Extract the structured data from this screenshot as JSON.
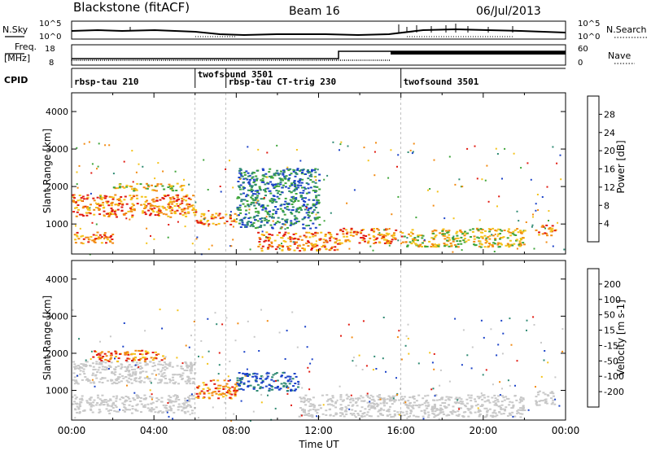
{
  "header": {
    "station": "Blackstone (fitACF)",
    "beam": "Beam 16",
    "date": "06/Jul/2013"
  },
  "top_strip": {
    "left_label_1": "N.Sky",
    "right_label_1": "N.Search",
    "left_ticks_1": [
      "10^5",
      "10^0"
    ],
    "right_ticks_1": [
      "10^5",
      "10^0"
    ],
    "left_label_2": "Freq.",
    "left_label_2b": "[MHz]",
    "left_ticks_2": [
      "18",
      "8"
    ],
    "right_label_2": "Nave",
    "right_ticks_2": [
      "60",
      "0"
    ],
    "cpid_label": "CPID"
  },
  "cpid_segments": [
    {
      "label": "rbsp-tau 210",
      "start_hour": 0.0
    },
    {
      "label": "twofsound 3501",
      "start_hour": 6.0
    },
    {
      "label": "rbsp-tau CT-trig 230",
      "start_hour": 7.5
    },
    {
      "label": "twofsound 3501",
      "start_hour": 16.0
    }
  ],
  "x_axis": {
    "label": "Time UT",
    "range_hours": [
      0,
      24
    ],
    "ticks": [
      "00:00",
      "04:00",
      "08:00",
      "12:00",
      "16:00",
      "20:00",
      "00:00"
    ]
  },
  "colors": {
    "red": "#e11a10",
    "orange": "#f28a11",
    "yellow": "#f4c31a",
    "green": "#3fa53a",
    "teal": "#2f8a73",
    "blue": "#1c43c8",
    "grey": "#c8c8c8"
  },
  "chart_data": [
    {
      "type": "heatmap",
      "name": "power",
      "ylabel": "Slant Range [km]",
      "yticks": [
        "1000",
        "2000",
        "3000",
        "4000"
      ],
      "ylim": [
        200,
        4500
      ],
      "xlim": [
        0,
        24
      ],
      "colorbar": {
        "label": "Power [dB]",
        "ticks": [
          "4",
          "8",
          "12",
          "16",
          "20",
          "24",
          "28"
        ],
        "colors": [
          "#1c43c8",
          "#2f8a73",
          "#3fa53a",
          "#f4c31a",
          "#f28a11",
          "#f26a10",
          "#e11a10"
        ]
      },
      "regions": [
        {
          "t": [
            0.0,
            6.0
          ],
          "r": [
            1200,
            1800
          ],
          "level": "high"
        },
        {
          "t": [
            0.0,
            2.0
          ],
          "r": [
            500,
            800
          ],
          "level": "high"
        },
        {
          "t": [
            2.0,
            5.5
          ],
          "r": [
            1900,
            2100
          ],
          "level": "mid"
        },
        {
          "t": [
            6.0,
            8.0
          ],
          "r": [
            1000,
            1300
          ],
          "level": "high"
        },
        {
          "t": [
            9.0,
            13.0
          ],
          "r": [
            300,
            800
          ],
          "level": "high"
        },
        {
          "t": [
            13.0,
            16.0
          ],
          "r": [
            500,
            900
          ],
          "level": "high"
        },
        {
          "t": [
            16.0,
            22.0
          ],
          "r": [
            400,
            900
          ],
          "level": "mid"
        },
        {
          "t": [
            22.5,
            23.5
          ],
          "r": [
            700,
            1000
          ],
          "level": "high"
        },
        {
          "t": [
            8.0,
            12.0
          ],
          "r": [
            900,
            2500
          ],
          "level": "low"
        }
      ]
    },
    {
      "type": "heatmap",
      "name": "velocity",
      "ylabel": "Slant Range [km]",
      "yticks": [
        "1000",
        "2000",
        "3000",
        "4000"
      ],
      "ylim": [
        200,
        4500
      ],
      "xlim": [
        0,
        24
      ],
      "colorbar": {
        "label": "Velocity [m s-1]",
        "ticks": [
          "200",
          "100",
          "50",
          "15",
          "-15",
          "-50",
          "-100",
          "-200"
        ],
        "colors": [
          "#1c43c8",
          "#2f8a73",
          "#3fa53a",
          "#c8c8c8",
          "#c8c8c8",
          "#f4c31a",
          "#f28a11",
          "#e11a10"
        ]
      },
      "regions": [
        {
          "t": [
            0.0,
            6.0
          ],
          "r": [
            1200,
            1800
          ],
          "level": "grey"
        },
        {
          "t": [
            1.0,
            4.5
          ],
          "r": [
            1800,
            2100
          ],
          "level": "red"
        },
        {
          "t": [
            0.0,
            6.0
          ],
          "r": [
            400,
            900
          ],
          "level": "grey"
        },
        {
          "t": [
            6.0,
            8.0
          ],
          "r": [
            800,
            1300
          ],
          "level": "red"
        },
        {
          "t": [
            8.0,
            11.0
          ],
          "r": [
            1000,
            1500
          ],
          "level": "blue"
        },
        {
          "t": [
            11.0,
            22.0
          ],
          "r": [
            300,
            900
          ],
          "level": "grey"
        },
        {
          "t": [
            22.5,
            23.5
          ],
          "r": [
            600,
            1000
          ],
          "level": "grey"
        }
      ]
    }
  ]
}
